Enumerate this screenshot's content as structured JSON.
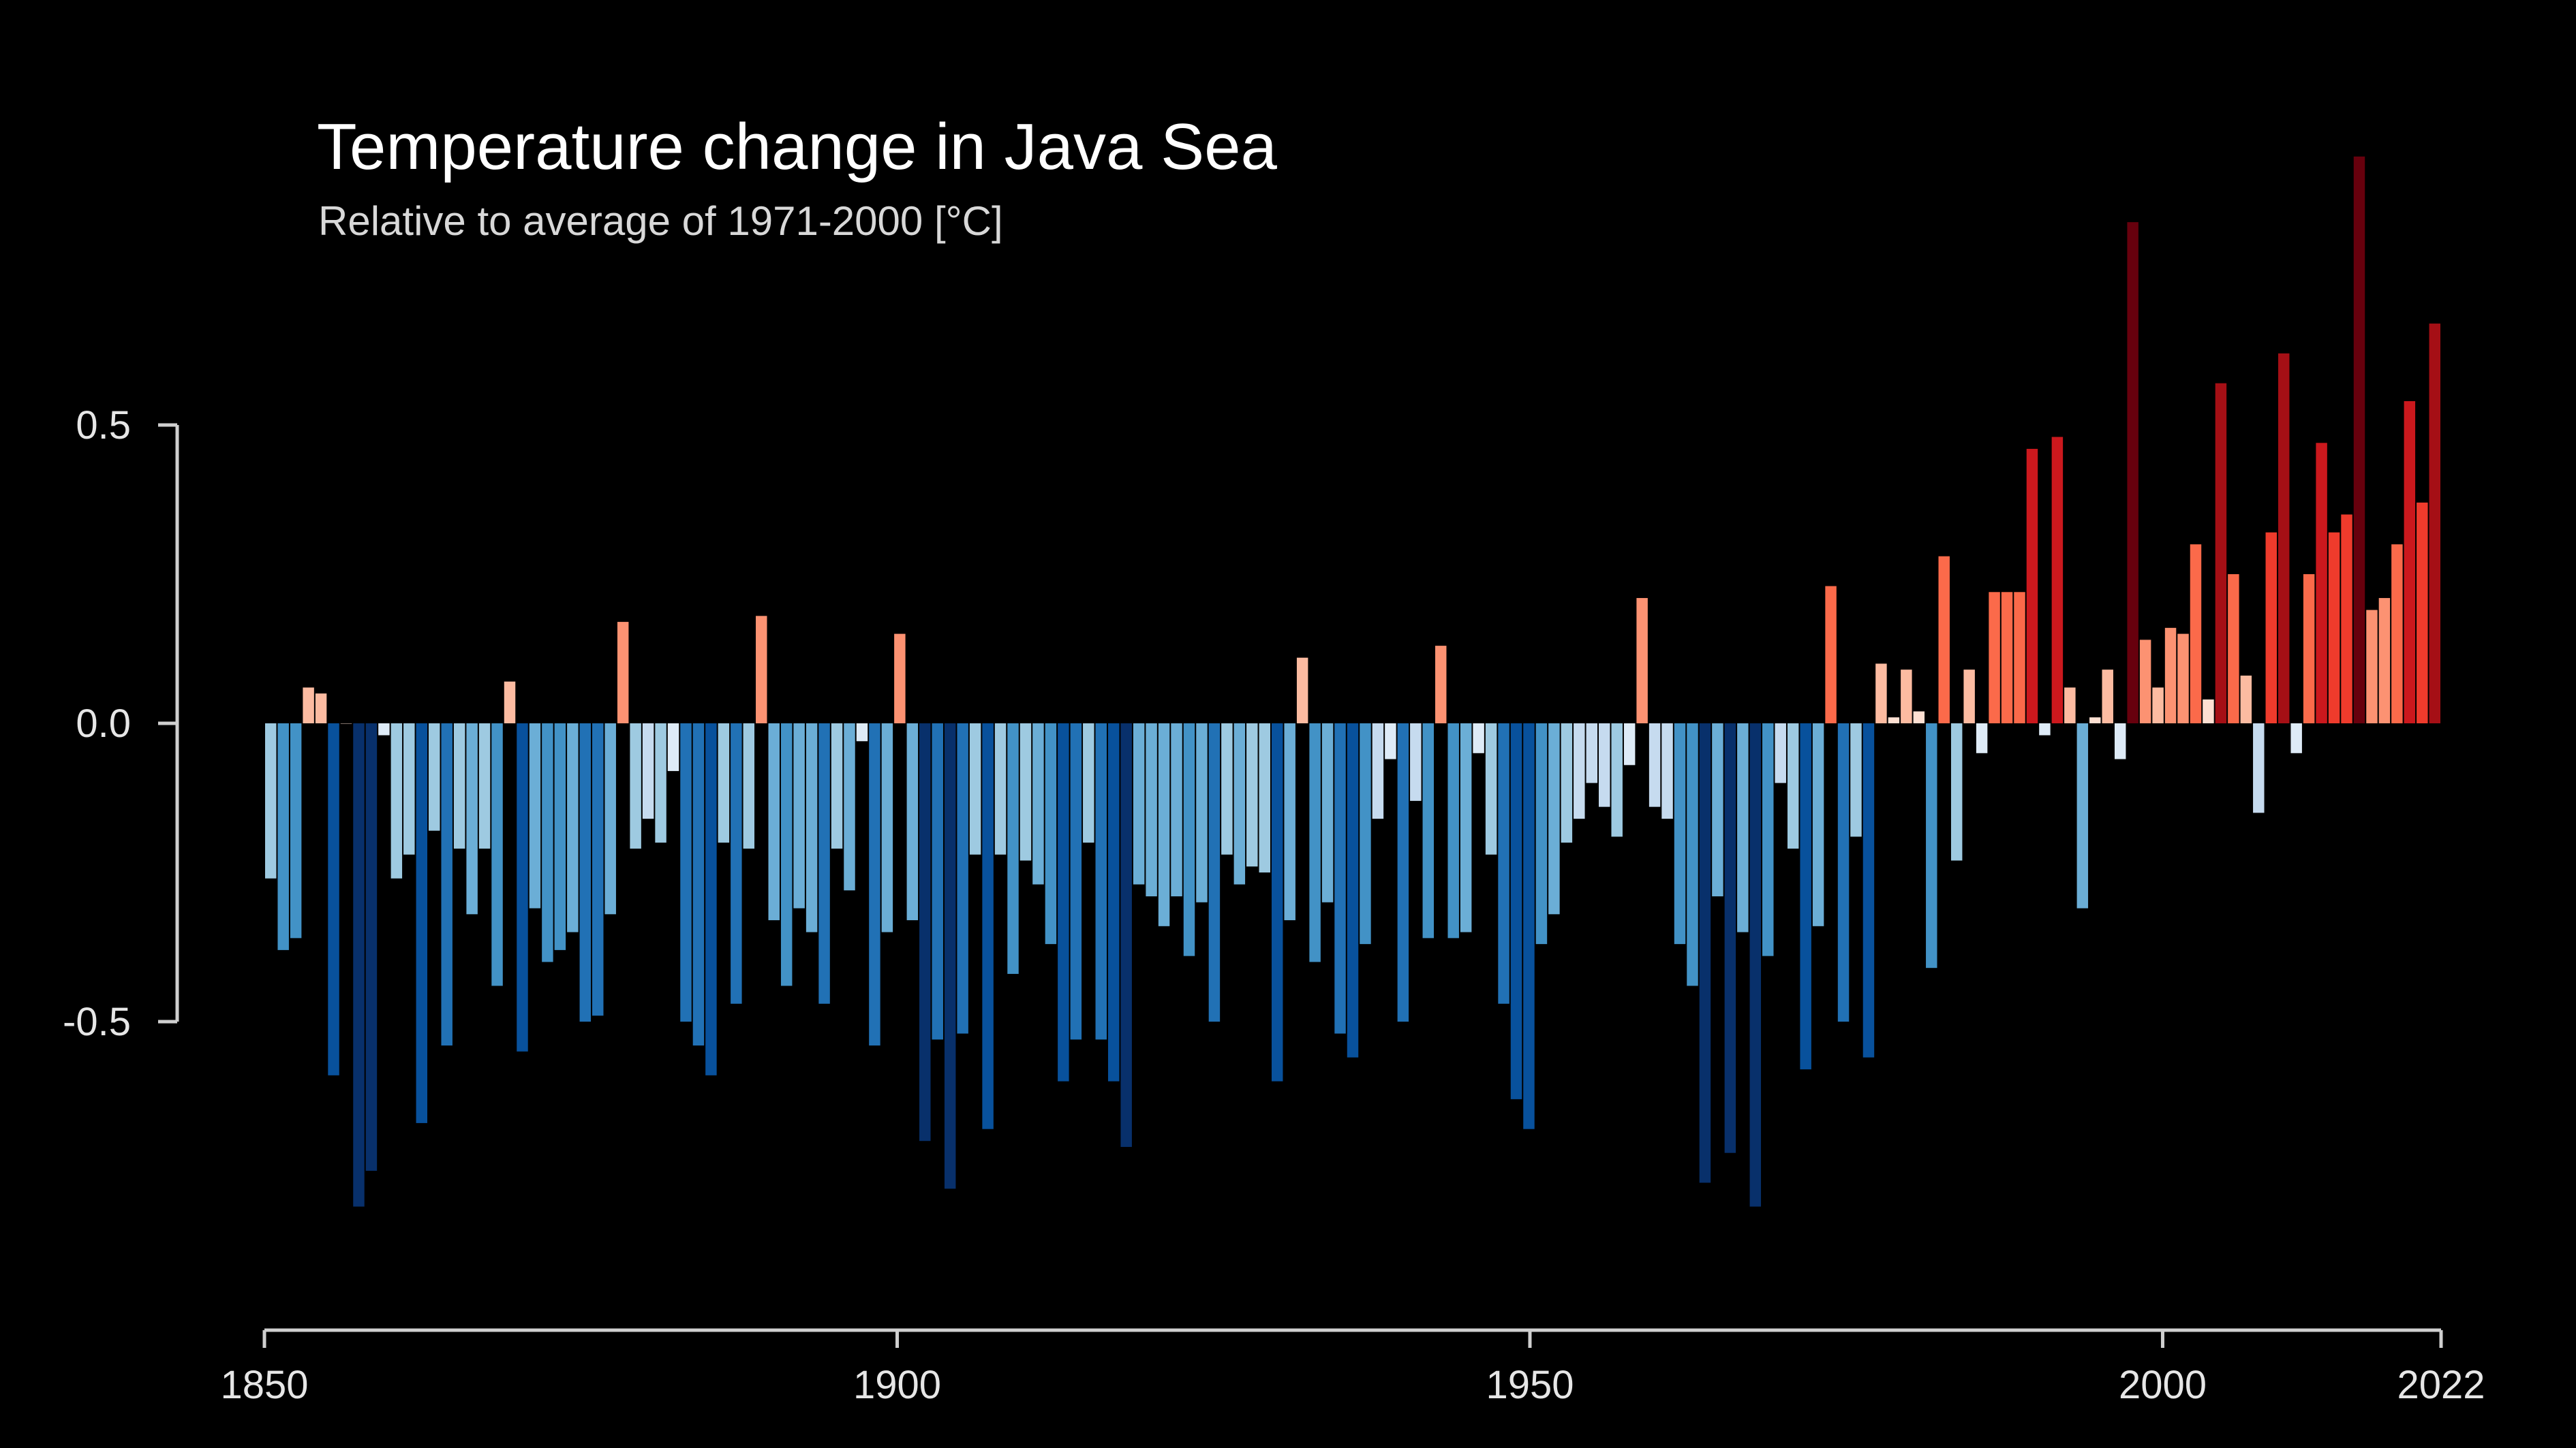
{
  "chart_data": {
    "type": "bar",
    "title": "Temperature change in Java Sea",
    "subtitle": "Relative to average of 1971-2000  [°C]",
    "xlabel": "",
    "ylabel": "",
    "x_start": 1850,
    "x_end": 2022,
    "xlim": [
      1850,
      2022
    ],
    "ylim": [
      -0.95,
      0.95
    ],
    "x_ticks": [
      {
        "value": 1850,
        "label": "1850"
      },
      {
        "value": 1900,
        "label": "1900"
      },
      {
        "value": 1950,
        "label": "1950"
      },
      {
        "value": 2000,
        "label": "2000"
      },
      {
        "value": 2022,
        "label": "2022"
      }
    ],
    "y_ticks": [
      {
        "value": 0.5,
        "label": "0.5"
      },
      {
        "value": 0.0,
        "label": "0.0"
      },
      {
        "value": -0.5,
        "label": "-0.5"
      }
    ],
    "grid": false,
    "legend": "none",
    "colormap": {
      "name": "warming stripes (blue-red diverging)",
      "negative": [
        "#08306b",
        "#08519c",
        "#2171b5",
        "#4292c6",
        "#6baed6",
        "#9ecae1",
        "#c6dbef",
        "#deebf7"
      ],
      "positive": [
        "#fee0d2",
        "#fcbba1",
        "#fc9272",
        "#fb6a4a",
        "#ef3b2c",
        "#cb181d",
        "#a50f15",
        "#67000d"
      ]
    },
    "years": [
      1850,
      1851,
      1852,
      1853,
      1854,
      1855,
      1856,
      1857,
      1858,
      1859,
      1860,
      1861,
      1862,
      1863,
      1864,
      1865,
      1866,
      1867,
      1868,
      1869,
      1870,
      1871,
      1872,
      1873,
      1874,
      1875,
      1876,
      1877,
      1878,
      1879,
      1880,
      1881,
      1882,
      1883,
      1884,
      1885,
      1886,
      1887,
      1888,
      1889,
      1890,
      1891,
      1892,
      1893,
      1894,
      1895,
      1896,
      1897,
      1898,
      1899,
      1900,
      1901,
      1902,
      1903,
      1904,
      1905,
      1906,
      1907,
      1908,
      1909,
      1910,
      1911,
      1912,
      1913,
      1914,
      1915,
      1916,
      1917,
      1918,
      1919,
      1920,
      1921,
      1922,
      1923,
      1924,
      1925,
      1926,
      1927,
      1928,
      1929,
      1930,
      1931,
      1932,
      1933,
      1934,
      1935,
      1936,
      1937,
      1938,
      1939,
      1940,
      1941,
      1942,
      1943,
      1944,
      1945,
      1946,
      1947,
      1948,
      1949,
      1950,
      1951,
      1952,
      1953,
      1954,
      1955,
      1956,
      1957,
      1958,
      1959,
      1960,
      1961,
      1962,
      1963,
      1964,
      1965,
      1966,
      1967,
      1968,
      1969,
      1970,
      1971,
      1972,
      1973,
      1974,
      1975,
      1976,
      1977,
      1978,
      1979,
      1980,
      1981,
      1982,
      1983,
      1984,
      1985,
      1986,
      1987,
      1988,
      1989,
      1990,
      1991,
      1992,
      1993,
      1994,
      1995,
      1996,
      1997,
      1998,
      1999,
      2000,
      2001,
      2002,
      2003,
      2004,
      2005,
      2006,
      2007,
      2008,
      2009,
      2010,
      2011,
      2012,
      2013,
      2014,
      2015,
      2016,
      2017,
      2018,
      2019,
      2020,
      2021,
      2022
    ],
    "values": [
      -0.26,
      -0.38,
      -0.36,
      0.06,
      0.05,
      -0.59,
      0.0,
      -0.81,
      -0.75,
      -0.02,
      -0.26,
      -0.22,
      -0.67,
      -0.18,
      -0.54,
      -0.21,
      -0.32,
      -0.21,
      -0.44,
      0.07,
      -0.55,
      -0.31,
      -0.4,
      -0.38,
      -0.35,
      -0.5,
      -0.49,
      -0.32,
      0.17,
      -0.21,
      -0.16,
      -0.2,
      -0.08,
      -0.5,
      -0.54,
      -0.59,
      -0.2,
      -0.47,
      -0.21,
      0.18,
      -0.33,
      -0.44,
      -0.31,
      -0.35,
      -0.47,
      -0.21,
      -0.28,
      -0.03,
      -0.54,
      -0.35,
      0.15,
      -0.33,
      -0.7,
      -0.53,
      -0.78,
      -0.52,
      -0.22,
      -0.68,
      -0.22,
      -0.42,
      -0.23,
      -0.27,
      -0.37,
      -0.6,
      -0.53,
      -0.2,
      -0.53,
      -0.6,
      -0.71,
      -0.27,
      -0.29,
      -0.34,
      -0.29,
      -0.39,
      -0.3,
      -0.5,
      -0.22,
      -0.27,
      -0.24,
      -0.25,
      -0.6,
      -0.33,
      0.11,
      -0.4,
      -0.3,
      -0.52,
      -0.56,
      -0.37,
      -0.16,
      -0.06,
      -0.5,
      -0.13,
      -0.36,
      0.13,
      -0.36,
      -0.35,
      -0.05,
      -0.22,
      -0.47,
      -0.63,
      -0.68,
      -0.37,
      -0.32,
      -0.2,
      -0.16,
      -0.1,
      -0.14,
      -0.19,
      -0.07,
      0.21,
      -0.14,
      -0.16,
      -0.37,
      -0.44,
      -0.77,
      -0.29,
      -0.72,
      -0.35,
      -0.81,
      -0.39,
      -0.1,
      -0.21,
      -0.58,
      -0.34,
      0.23,
      -0.5,
      -0.19,
      -0.56,
      0.1,
      0.01,
      0.09,
      0.02,
      -0.41,
      0.28,
      -0.23,
      0.09,
      -0.05,
      0.22,
      0.22,
      0.22,
      0.46,
      -0.02,
      0.48,
      0.06,
      -0.31,
      0.01,
      0.09,
      -0.06,
      0.84,
      0.14,
      0.06,
      0.16,
      0.15,
      0.3,
      0.04,
      0.57,
      0.25,
      0.08,
      -0.15,
      0.32,
      0.62,
      -0.05,
      0.25,
      0.47,
      0.32,
      0.35,
      0.95,
      0.19,
      0.21,
      0.3,
      0.54,
      0.37,
      0.67
    ]
  }
}
